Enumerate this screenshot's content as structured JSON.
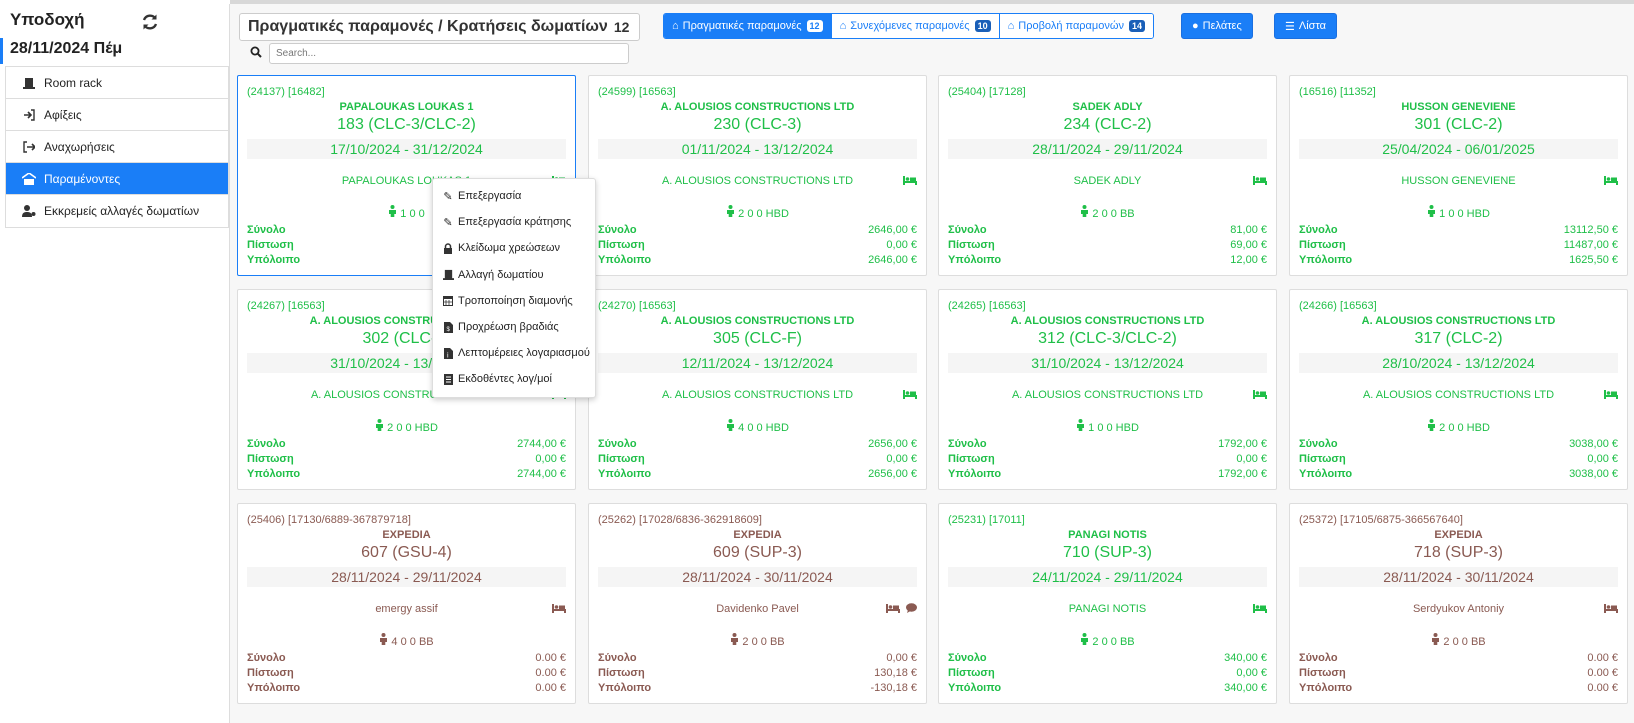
{
  "sidebar": {
    "title": "Υποδοχή",
    "date": "28/11/2024 Πέμ",
    "items": [
      {
        "label": "Room rack",
        "icon": "door-icon"
      },
      {
        "label": "Αφίξεις",
        "icon": "sign-in-icon"
      },
      {
        "label": "Αναχωρήσεις",
        "icon": "sign-out-icon"
      },
      {
        "label": "Παραμένοντες",
        "icon": "hotel-icon",
        "active": true
      },
      {
        "label": "Εκκρεμείς αλλαγές δωματίων",
        "icon": "user-cog-icon"
      }
    ]
  },
  "header": {
    "title": "Πραγματικές παραμονές / Κρατήσεις δωματίων",
    "count": "12"
  },
  "view_tabs": [
    {
      "label": "Πραγματικές παραμονές",
      "badge": "12",
      "active": true
    },
    {
      "label": "Συνεχόμενες παραμονές",
      "badge": "10",
      "active": false
    },
    {
      "label": "Προβολή παραμονών",
      "badge": "14",
      "active": false
    }
  ],
  "buttons": {
    "customers": "Πελάτες",
    "list": "Λίστα"
  },
  "search": {
    "placeholder": "Search..."
  },
  "colors": {
    "accent": "#1a7ef7",
    "green": "#1fbf48",
    "brown": "#8a5a52"
  },
  "context_menu": [
    {
      "label": "Επεξεργασία",
      "icon": "edit-icon"
    },
    {
      "label": "Επεξεργασία κράτησης",
      "icon": "edit-icon"
    },
    {
      "label": "Κλείδωμα χρεώσεων",
      "icon": "lock-icon"
    },
    {
      "label": "Αλλαγή δωματίου",
      "icon": "door-icon"
    },
    {
      "label": "Τροποποίηση διαμονής",
      "icon": "calendar-icon"
    },
    {
      "label": "Προχρέωση βραδιάς",
      "icon": "file-money-icon"
    },
    {
      "label": "Λεπτομέρειες λογαριασμού",
      "icon": "file-info-icon"
    },
    {
      "label": "Εκδοθέντες λογ/μοί",
      "icon": "receipt-icon"
    }
  ],
  "fin_labels": {
    "total": "Σύνολο",
    "credit": "Πίστωση",
    "balance": "Υπόλοιπο"
  },
  "cards": [
    {
      "ids": "(24137) [16482]",
      "name": "PAPALOUKAS LOUKAS 1",
      "room": "183 (CLC-3/CLC-2)",
      "dates": "17/10/2024 - 31/12/2024",
      "guest": "PAPALOUKAS LOUKAS 1",
      "pax": "1  0  0",
      "total": "",
      "credit": "",
      "balance": "",
      "color": "green",
      "selected": true
    },
    {
      "ids": "(24599) [16563]",
      "name": "A. ALOUSIOS CONSTRUCTIONS LTD",
      "room": "230 (CLC-3)",
      "dates": "01/11/2024 - 13/12/2024",
      "guest": "A. ALOUSIOS CONSTRUCTIONS LTD",
      "pax": "2  0  0 HBD",
      "total": "2646,00 €",
      "credit": "0,00 €",
      "balance": "2646,00 €",
      "color": "green"
    },
    {
      "ids": "(25404) [17128]",
      "name": "SADEK ADLY",
      "room": "234 (CLC-2)",
      "dates": "28/11/2024 - 29/11/2024",
      "guest": "SADEK ADLY",
      "pax": "2  0  0 BB",
      "total": "81,00 €",
      "credit": "69,00 €",
      "balance": "12,00 €",
      "color": "green"
    },
    {
      "ids": "(16516) [11352]",
      "name": "HUSSON GENEVIENE",
      "room": "301 (CLC-2)",
      "dates": "25/04/2024 - 06/01/2025",
      "guest": "HUSSON GENEVIENE",
      "pax": "1  0  0 HBD",
      "total": "13112,50 €",
      "credit": "11487,00 €",
      "balance": "1625,50 €",
      "color": "green"
    },
    {
      "ids": "(24267) [16563]",
      "name": "A. ALOUSIOS CONSTRUCTIONS LTD",
      "room": "302 (CLC-3)",
      "dates": "31/10/2024 - 13/12/2024",
      "guest": "A. ALOUSIOS CONSTRUCTIONS LTD",
      "pax": "2  0  0 HBD",
      "total": "2744,00 €",
      "credit": "0,00 €",
      "balance": "2744,00 €",
      "color": "green"
    },
    {
      "ids": "(24270) [16563]",
      "name": "A. ALOUSIOS CONSTRUCTIONS LTD",
      "room": "305 (CLC-F)",
      "dates": "12/11/2024 - 13/12/2024",
      "guest": "A. ALOUSIOS CONSTRUCTIONS LTD",
      "pax": "4  0  0 HBD",
      "total": "2656,00 €",
      "credit": "0,00 €",
      "balance": "2656,00 €",
      "color": "green"
    },
    {
      "ids": "(24265) [16563]",
      "name": "A. ALOUSIOS CONSTRUCTIONS LTD",
      "room": "312 (CLC-3/CLC-2)",
      "dates": "31/10/2024 - 13/12/2024",
      "guest": "A. ALOUSIOS CONSTRUCTIONS LTD",
      "pax": "1  0  0 HBD",
      "total": "1792,00 €",
      "credit": "0,00 €",
      "balance": "1792,00 €",
      "color": "green"
    },
    {
      "ids": "(24266) [16563]",
      "name": "A. ALOUSIOS CONSTRUCTIONS LTD",
      "room": "317 (CLC-2)",
      "dates": "28/10/2024 - 13/12/2024",
      "guest": "A. ALOUSIOS CONSTRUCTIONS LTD",
      "pax": "2  0  0 HBD",
      "total": "3038,00 €",
      "credit": "0,00 €",
      "balance": "3038,00 €",
      "color": "green"
    },
    {
      "ids": "(25406) [17130/6889-367879718]",
      "name": "EXPEDIA",
      "room": "607 (GSU-4)",
      "dates": "28/11/2024 - 29/11/2024",
      "guest": "emergy assif",
      "pax": "4  0  0 BB",
      "total": "0.00 €",
      "credit": "0.00 €",
      "balance": "0.00 €",
      "color": "brown"
    },
    {
      "ids": "(25262) [17028/6836-362918609]",
      "name": "EXPEDIA",
      "room": "609 (SUP-3)",
      "dates": "28/11/2024 - 30/11/2024",
      "guest": "Davidenko Pavel",
      "pax": "2  0  0 BB",
      "total": "0,00 €",
      "credit": "130,18 €",
      "balance": "-130,18 €",
      "color": "brown",
      "comment": true
    },
    {
      "ids": "(25231) [17011]",
      "name": "PANAGI NOTIS",
      "room": "710 (SUP-3)",
      "dates": "24/11/2024 - 29/11/2024",
      "guest": "PANAGI NOTIS",
      "pax": "2  0  0 BB",
      "total": "340,00 €",
      "credit": "0,00 €",
      "balance": "340,00 €",
      "color": "green"
    },
    {
      "ids": "(25372) [17105/6875-366567640]",
      "name": "EXPEDIA",
      "room": "718 (SUP-3)",
      "dates": "28/11/2024 - 30/11/2024",
      "guest": "Serdyukov Antoniy",
      "pax": "2  0  0 BB",
      "total": "0.00 €",
      "credit": "0.00 €",
      "balance": "0.00 €",
      "color": "brown"
    }
  ]
}
